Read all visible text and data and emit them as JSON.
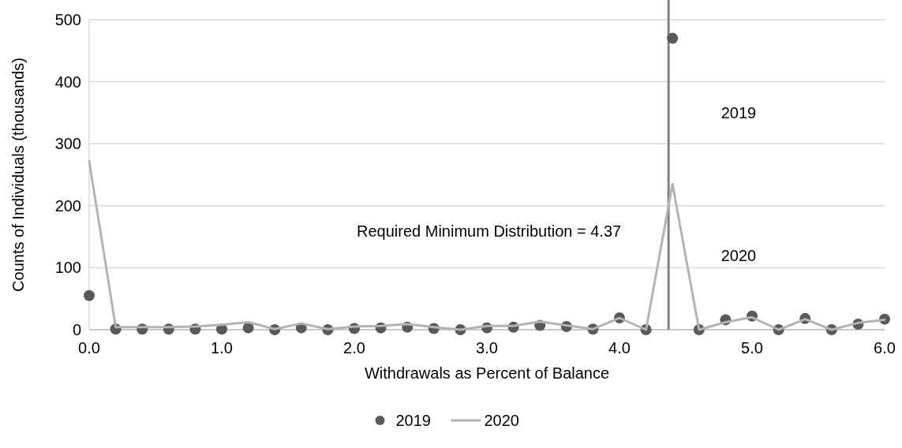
{
  "chart_data": {
    "type": "line",
    "xlabel": "Withdrawals as Percent of Balance",
    "ylabel": "Counts of Individuals (thousands)",
    "x": [
      0,
      0.2,
      0.4,
      0.6,
      0.8,
      1.0,
      1.2,
      1.4,
      1.6,
      1.8,
      2.0,
      2.2,
      2.4,
      2.6,
      2.8,
      3.0,
      3.2,
      3.4,
      3.6,
      3.8,
      4.0,
      4.2,
      4.4,
      4.6,
      4.8,
      5.0,
      5.2,
      5.4,
      5.6,
      5.8,
      6.0
    ],
    "series": [
      {
        "name": "2019",
        "type": "scatter",
        "marker": "circle",
        "color": "#595959",
        "values": [
          55,
          1,
          1,
          1,
          1,
          1,
          3,
          0,
          3,
          0,
          2,
          3,
          4,
          2,
          0,
          3,
          4,
          7,
          5,
          1,
          19,
          0,
          470,
          0,
          16,
          22,
          0,
          18,
          0,
          9,
          17
        ]
      },
      {
        "name": "2020",
        "marker": "none",
        "color": "#b3b3b3",
        "values": [
          272,
          4,
          4,
          4,
          5,
          8,
          12,
          1,
          10,
          1,
          5,
          6,
          9,
          4,
          0,
          6,
          6,
          13,
          7,
          1,
          19,
          0,
          235,
          0,
          12,
          20,
          0,
          17,
          0,
          11,
          16
        ]
      }
    ],
    "xlim": [
      0,
      6
    ],
    "xticks": [
      {
        "value": 0,
        "label": "0.0"
      },
      {
        "value": 1,
        "label": "1.0"
      },
      {
        "value": 2,
        "label": "2.0"
      },
      {
        "value": 3,
        "label": "3.0"
      },
      {
        "value": 4,
        "label": "4.0"
      },
      {
        "value": 5,
        "label": "5.0"
      },
      {
        "value": 6,
        "label": "6.0"
      }
    ],
    "ylim": [
      0,
      500
    ],
    "yticks": [
      0,
      100,
      200,
      300,
      400,
      500
    ],
    "grid": "y",
    "legend": "bottom",
    "ref_lines": [
      {
        "axis": "x",
        "value": 4.37,
        "label": "Required Minimum Distribution = 4.37",
        "color": "#808080"
      }
    ],
    "annotations": [
      "2019",
      "2020"
    ]
  }
}
